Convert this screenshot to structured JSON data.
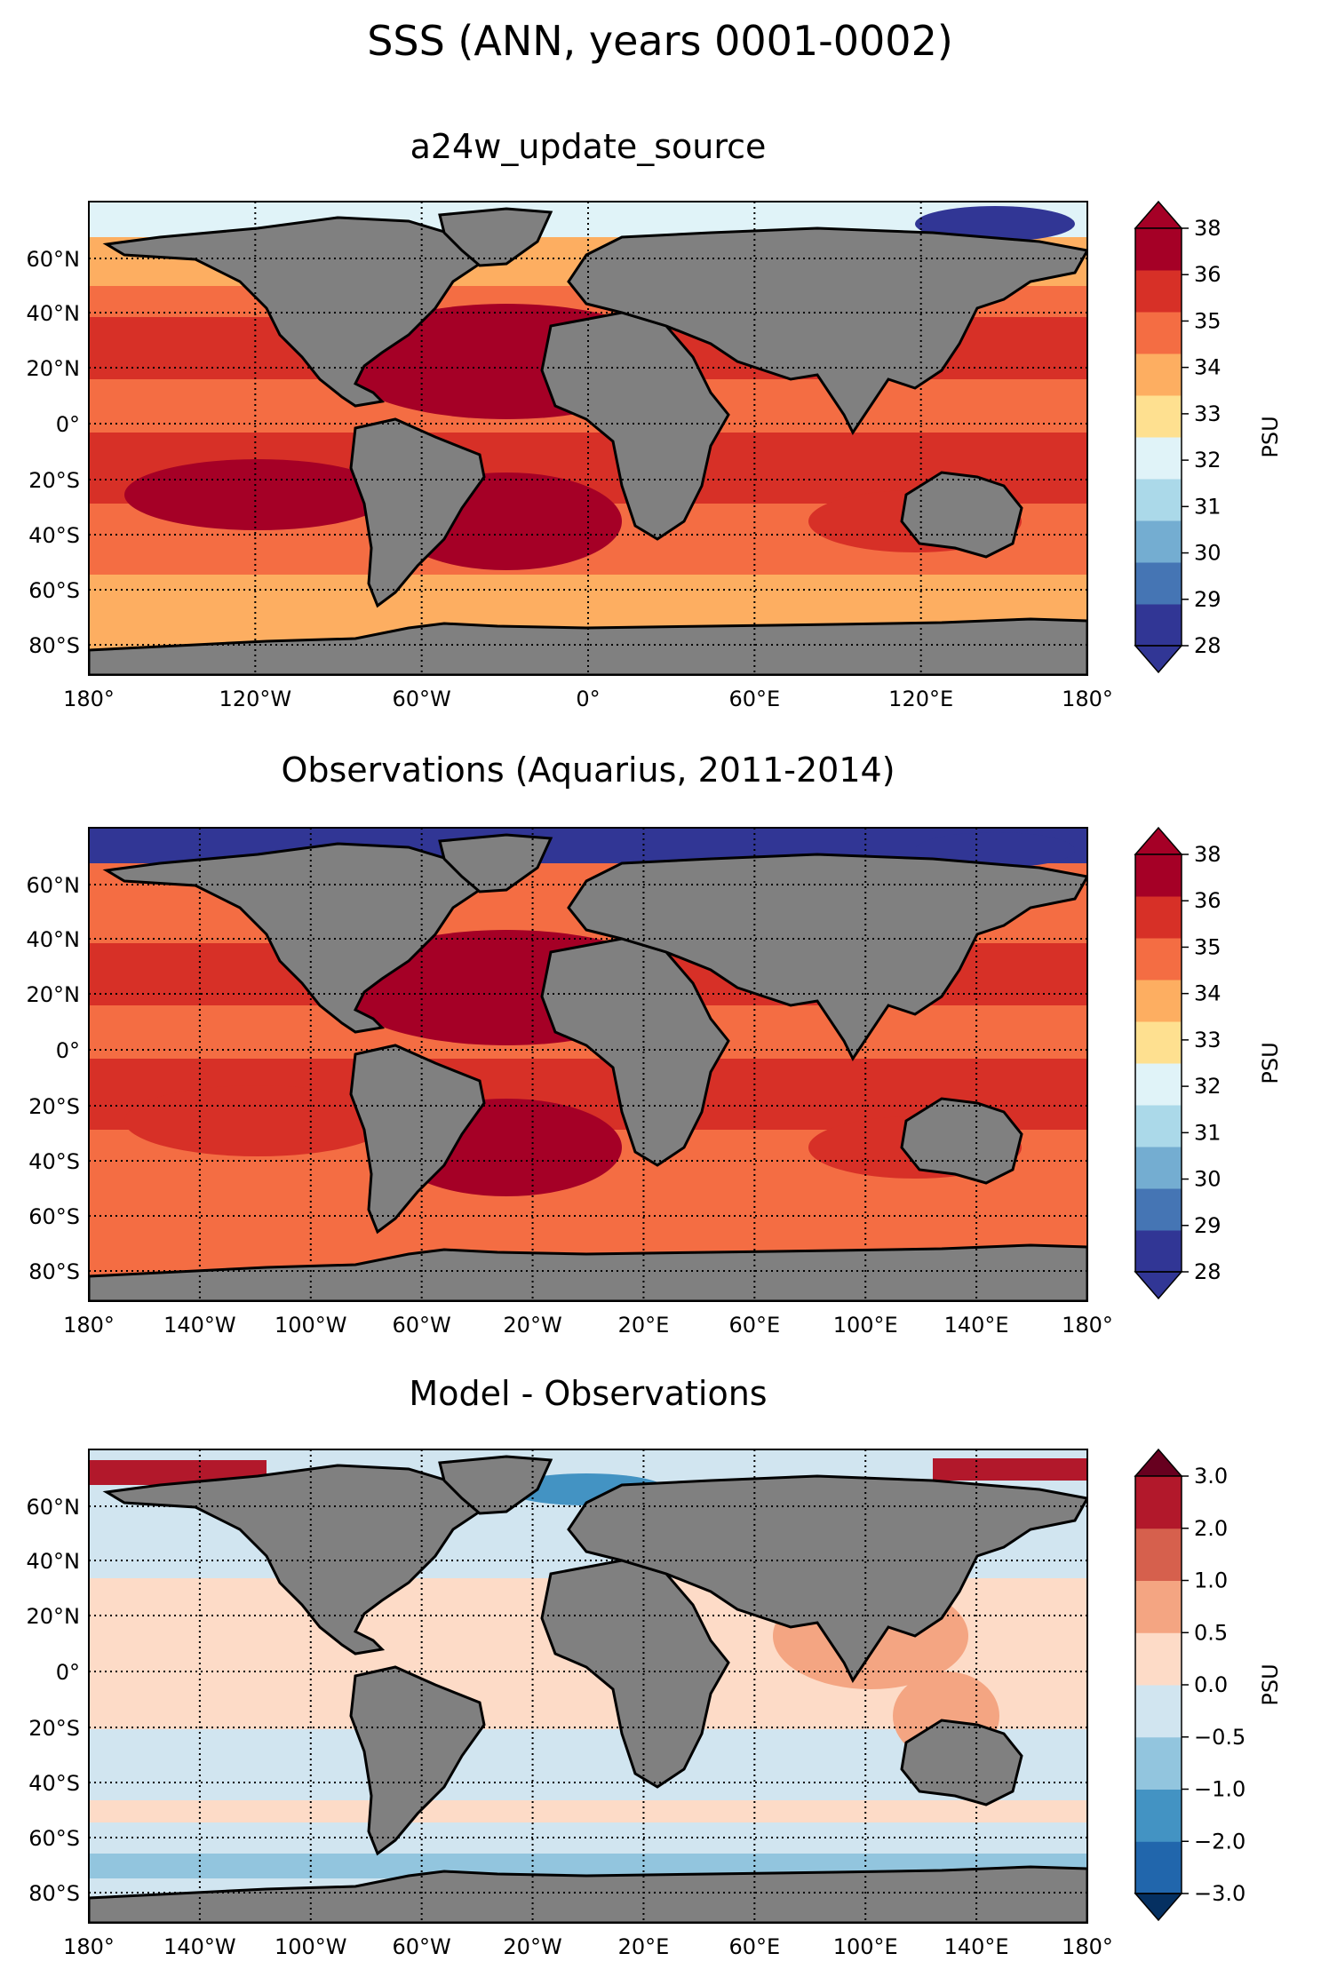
{
  "figure_title": "SSS (ANN, years 0001-0002)",
  "panels": [
    {
      "title": "a24w_update_source",
      "lat_ticks": [
        "60°N",
        "40°N",
        "20°N",
        "0°",
        "20°S",
        "40°S",
        "60°S",
        "80°S"
      ],
      "lon_ticks": [
        "180°",
        "120°W",
        "60°W",
        "0°",
        "60°E",
        "120°E",
        "180°"
      ],
      "colorbar": {
        "label": "PSU",
        "ticks": [
          "28",
          "29",
          "30",
          "31",
          "32",
          "33",
          "34",
          "35",
          "36",
          "38"
        ],
        "colors": [
          "#313695",
          "#4575b4",
          "#74add1",
          "#abd9e9",
          "#e0f3f8",
          "#fee090",
          "#fdae61",
          "#f46d43",
          "#d73027",
          "#a50026"
        ],
        "extend": "both"
      },
      "field_colors": {
        "land": "#808080",
        "high_lat": "#fdae61",
        "mid": "#f46d43",
        "subtropic": "#d73027",
        "max": "#a50026",
        "arctic": "#e0f3f8",
        "fresh": "#313695"
      }
    },
    {
      "title": "Observations (Aquarius, 2011-2014)",
      "lat_ticks": [
        "60°N",
        "40°N",
        "20°N",
        "0°",
        "20°S",
        "40°S",
        "60°S",
        "80°S"
      ],
      "lon_ticks": [
        "180°",
        "140°W",
        "100°W",
        "60°W",
        "20°W",
        "20°E",
        "60°E",
        "100°E",
        "140°E",
        "180°"
      ],
      "colorbar": {
        "label": "PSU",
        "ticks": [
          "28",
          "29",
          "30",
          "31",
          "32",
          "33",
          "34",
          "35",
          "36",
          "38"
        ],
        "colors": [
          "#313695",
          "#4575b4",
          "#74add1",
          "#abd9e9",
          "#e0f3f8",
          "#fee090",
          "#fdae61",
          "#f46d43",
          "#d73027",
          "#a50026"
        ],
        "extend": "both"
      },
      "field_colors": {
        "land": "#808080",
        "high_lat": "#f46d43",
        "mid": "#f46d43",
        "subtropic": "#d73027",
        "max": "#a50026",
        "arctic": "#313695",
        "fresh": "#313695"
      }
    },
    {
      "title": "Model - Observations",
      "lat_ticks": [
        "60°N",
        "40°N",
        "20°N",
        "0°",
        "20°S",
        "40°S",
        "60°S",
        "80°S"
      ],
      "lon_ticks": [
        "180°",
        "140°W",
        "100°W",
        "60°W",
        "20°W",
        "20°E",
        "60°E",
        "100°E",
        "140°E",
        "180°"
      ],
      "colorbar": {
        "label": "PSU",
        "ticks": [
          "−3.0",
          "−2.0",
          "−1.0",
          "−0.5",
          "0.0",
          "0.5",
          "1.0",
          "2.0",
          "3.0"
        ],
        "colors": [
          "#2166ac",
          "#4393c3",
          "#92c5de",
          "#d1e5f0",
          "#fddbc7",
          "#f4a582",
          "#d6604d",
          "#b2182b"
        ],
        "extend": "both"
      },
      "field_colors": {
        "land": "#808080",
        "base": "#d1e5f0",
        "tropics": "#fddbc7",
        "pos": "#f4a582",
        "neg": "#92c5de",
        "arctic_pos": "#b2182b",
        "arctic_neg": "#4393c3"
      }
    }
  ]
}
